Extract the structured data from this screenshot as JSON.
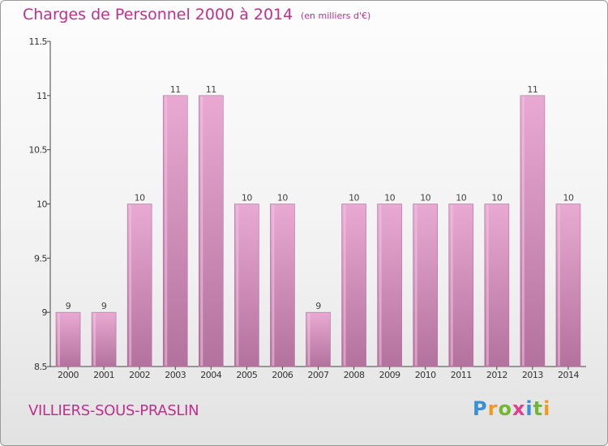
{
  "title": "Charges de Personnel 2000 à 2014",
  "unit_note": "(en milliers d'€)",
  "commune": "VILLIERS-SOUS-PRASLIN",
  "logo": {
    "letters": [
      "P",
      "r",
      "o",
      "x",
      "i",
      "t",
      "i"
    ],
    "colors": [
      "#3b8fd6",
      "#f29a1c",
      "#73b72f",
      "#e23d8e",
      "#3b8fd6",
      "#73b72f",
      "#f29a1c"
    ]
  },
  "chart_data": {
    "type": "bar",
    "categories": [
      "2000",
      "2001",
      "2002",
      "2003",
      "2004",
      "2005",
      "2006",
      "2007",
      "2008",
      "2009",
      "2010",
      "2011",
      "2012",
      "2013",
      "2014"
    ],
    "values": [
      9,
      9,
      10,
      11,
      11,
      10,
      10,
      9,
      10,
      10,
      10,
      10,
      10,
      11,
      10
    ],
    "data_labels": [
      "9",
      "9",
      "10",
      "11",
      "11",
      "10",
      "10",
      "9",
      "10",
      "10",
      "10",
      "10",
      "10",
      "11",
      "10"
    ],
    "ylim": [
      8.5,
      11.5
    ],
    "yticks": [
      8.5,
      9,
      9.5,
      10,
      10.5,
      11,
      11.5
    ],
    "ytick_labels": [
      "8.5",
      "9",
      "9.5",
      "10",
      "10.5",
      "11",
      "11.5"
    ],
    "title": "Charges de Personnel 2000 à 2014",
    "xlabel": "",
    "ylabel": "",
    "grid": false,
    "legend": "none",
    "bar_color_top": "#e8a9d2",
    "bar_color_bottom": "#b3729d",
    "bar_highlight": "#f2c6e1"
  }
}
